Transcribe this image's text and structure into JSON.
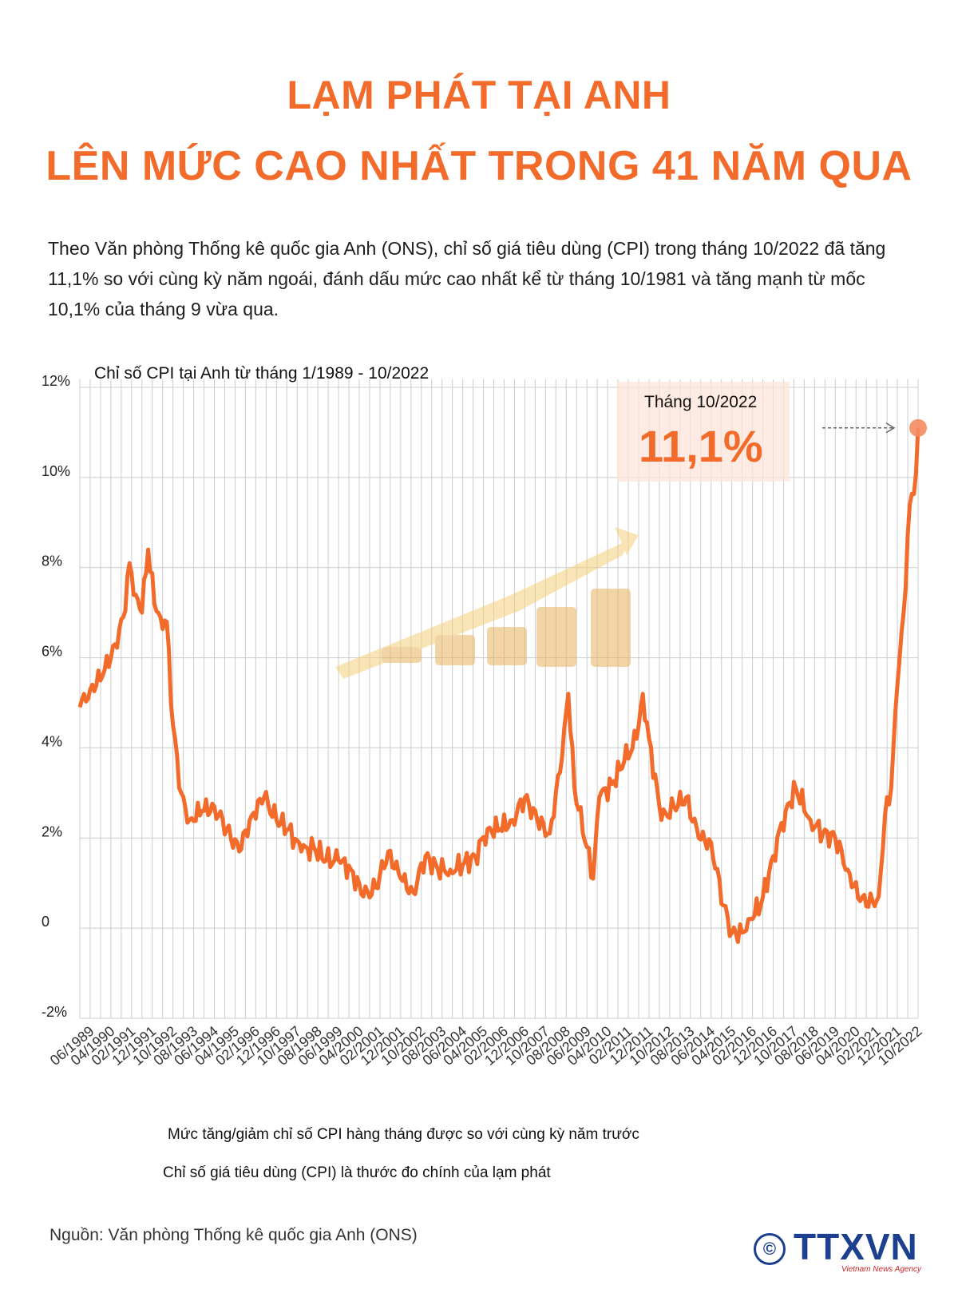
{
  "title_line1": "LẠM PHÁT TẠI ANH",
  "title_line2": "LÊN MỨC CAO NHẤT TRONG 41 NĂM QUA",
  "intro": "Theo Văn phòng Thống kê quốc gia Anh (ONS), chỉ số giá tiêu dùng (CPI) trong tháng 10/2022 đã tăng 11,1% so với cùng kỳ năm ngoái, đánh dấu mức cao nhất kể từ tháng 10/1981 và tăng mạnh từ mốc 10,1% của tháng 9 vừa qua.",
  "note1": "Mức tăng/giảm chỉ số CPI hàng tháng được so với cùng kỳ năm trước",
  "note2": "Chỉ số giá tiêu dùng (CPI) là thước đo chính của lạm phát",
  "source": "Nguồn: Văn phòng Thống kê quốc gia Anh (ONS)",
  "logo": {
    "symbol": "©",
    "name": "TTXVN",
    "tagline": "Vietnam News Agency"
  },
  "colors": {
    "accent": "#f26b2a",
    "grid": "#cccccc",
    "logo": "#1c3f8f"
  },
  "chart_data": {
    "type": "line",
    "title": "Chỉ số CPI tại Anh từ tháng 1/1989 - 10/2022",
    "ylim": [
      -2,
      12
    ],
    "yticks": [
      12,
      10,
      8,
      6,
      4,
      2,
      0,
      -2
    ],
    "ytick_labels": [
      "12%",
      "10%",
      "8%",
      "6%",
      "4%",
      "2%",
      "0",
      "-2%"
    ],
    "grid": true,
    "x_tick_labels": [
      "06/1989",
      "04/1990",
      "02/1991",
      "12/1991",
      "10/1992",
      "08/1993",
      "06/1994",
      "04/1995",
      "02/1996",
      "12/1996",
      "10/1997",
      "08/1998",
      "06/1999",
      "04/2000",
      "02/2001",
      "12/2001",
      "10/2002",
      "08/2003",
      "06/2004",
      "04/2005",
      "02/2006",
      "12/2006",
      "10/2007",
      "08/2008",
      "06/2009",
      "04/2010",
      "02/2011",
      "12/2011",
      "10/2012",
      "08/2013",
      "06/2014",
      "04/2015",
      "02/2016",
      "12/2016",
      "10/2017",
      "08/2018",
      "06/2019",
      "04/2020",
      "02/2021",
      "12/2021",
      "10/2022"
    ],
    "x_start": "01/1989",
    "x_end": "10/2022",
    "anchors": [
      [
        "01/1989",
        4.9
      ],
      [
        "06/1989",
        5.3
      ],
      [
        "12/1989",
        5.6
      ],
      [
        "06/1990",
        6.3
      ],
      [
        "10/1990",
        6.9
      ],
      [
        "01/1991",
        8.1
      ],
      [
        "04/1991",
        7.4
      ],
      [
        "07/1991",
        7.0
      ],
      [
        "10/1991",
        8.4
      ],
      [
        "01/1992",
        7.2
      ],
      [
        "04/1992",
        6.9
      ],
      [
        "07/1992",
        6.8
      ],
      [
        "10/1992",
        4.5
      ],
      [
        "02/1993",
        3.0
      ],
      [
        "06/1993",
        2.4
      ],
      [
        "12/1993",
        2.6
      ],
      [
        "06/1994",
        2.7
      ],
      [
        "12/1994",
        2.2
      ],
      [
        "06/1995",
        1.7
      ],
      [
        "12/1995",
        2.5
      ],
      [
        "06/1996",
        2.9
      ],
      [
        "12/1996",
        2.4
      ],
      [
        "06/1997",
        2.2
      ],
      [
        "12/1997",
        1.7
      ],
      [
        "06/1998",
        1.8
      ],
      [
        "12/1998",
        1.5
      ],
      [
        "06/1999",
        1.5
      ],
      [
        "12/1999",
        1.3
      ],
      [
        "06/2000",
        0.7
      ],
      [
        "12/2000",
        0.9
      ],
      [
        "06/2001",
        1.7
      ],
      [
        "12/2001",
        1.1
      ],
      [
        "06/2002",
        0.8
      ],
      [
        "12/2002",
        1.6
      ],
      [
        "06/2003",
        1.3
      ],
      [
        "12/2003",
        1.3
      ],
      [
        "06/2004",
        1.4
      ],
      [
        "12/2004",
        1.6
      ],
      [
        "06/2005",
        2.2
      ],
      [
        "12/2005",
        2.2
      ],
      [
        "06/2006",
        2.4
      ],
      [
        "12/2006",
        2.9
      ],
      [
        "06/2007",
        2.4
      ],
      [
        "12/2007",
        2.1
      ],
      [
        "06/2008",
        3.8
      ],
      [
        "09/2008",
        5.2
      ],
      [
        "12/2008",
        3.1
      ],
      [
        "06/2009",
        1.8
      ],
      [
        "09/2009",
        1.1
      ],
      [
        "12/2009",
        2.9
      ],
      [
        "06/2010",
        3.2
      ],
      [
        "12/2010",
        3.7
      ],
      [
        "06/2011",
        4.2
      ],
      [
        "09/2011",
        5.2
      ],
      [
        "12/2011",
        4.2
      ],
      [
        "06/2012",
        2.4
      ],
      [
        "12/2012",
        2.7
      ],
      [
        "06/2013",
        2.9
      ],
      [
        "12/2013",
        2.0
      ],
      [
        "06/2014",
        1.9
      ],
      [
        "12/2014",
        0.5
      ],
      [
        "04/2015",
        -0.1
      ],
      [
        "09/2015",
        -0.1
      ],
      [
        "12/2015",
        0.2
      ],
      [
        "06/2016",
        0.5
      ],
      [
        "12/2016",
        1.6
      ],
      [
        "06/2017",
        2.6
      ],
      [
        "11/2017",
        3.1
      ],
      [
        "06/2018",
        2.4
      ],
      [
        "12/2018",
        2.1
      ],
      [
        "06/2019",
        2.0
      ],
      [
        "12/2019",
        1.3
      ],
      [
        "06/2020",
        0.6
      ],
      [
        "12/2020",
        0.6
      ],
      [
        "03/2021",
        0.7
      ],
      [
        "06/2021",
        2.5
      ],
      [
        "09/2021",
        3.1
      ],
      [
        "12/2021",
        5.4
      ],
      [
        "03/2022",
        7.0
      ],
      [
        "06/2022",
        9.4
      ],
      [
        "09/2022",
        10.1
      ],
      [
        "10/2022",
        11.1
      ]
    ],
    "annotation": {
      "label": "Tháng 10/2022",
      "value_text": "11,1%",
      "x": "10/2022",
      "y": 11.1
    }
  }
}
